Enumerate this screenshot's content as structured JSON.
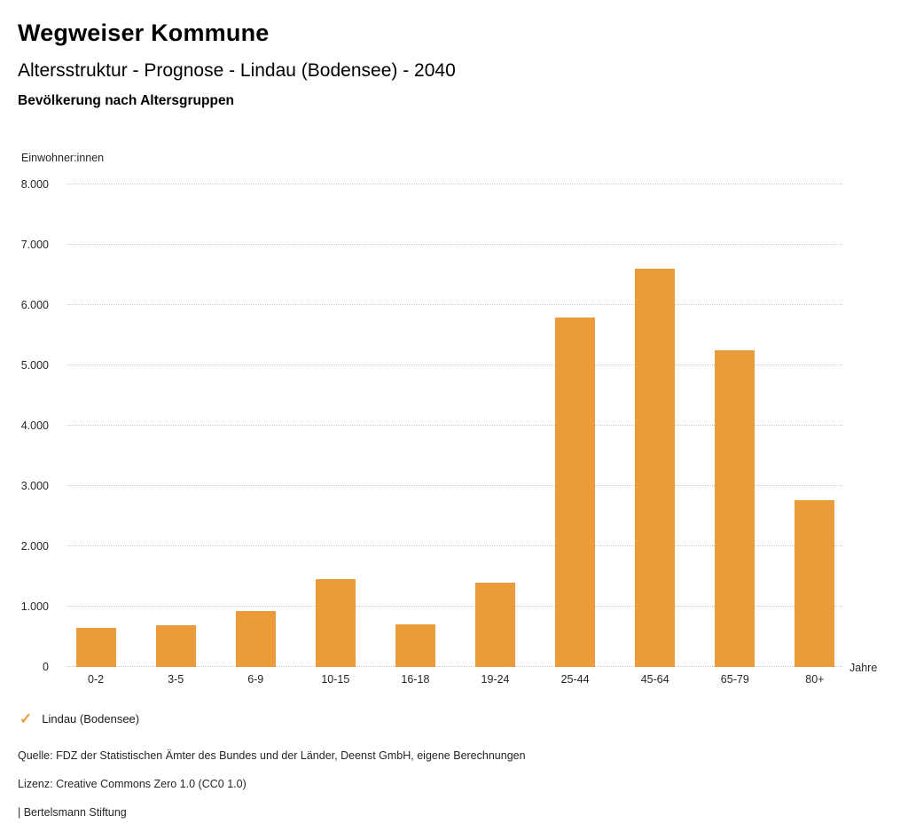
{
  "header": {
    "brand": "Wegweiser Kommune",
    "title": "Altersstruktur - Prognose - Lindau (Bodensee) - 2040",
    "subtitle": "Bevölkerung nach Altersgruppen"
  },
  "chart_data": {
    "type": "bar",
    "title": "Bevölkerung nach Altersgruppen",
    "categories": [
      "0-2",
      "3-5",
      "6-9",
      "10-15",
      "16-18",
      "19-24",
      "25-44",
      "45-64",
      "65-79",
      "80+"
    ],
    "series": [
      {
        "name": "Lindau (Bodensee)",
        "values": [
          650,
          690,
          920,
          1450,
          710,
          1390,
          5800,
          6610,
          5250,
          2770
        ]
      }
    ],
    "xlabel": "Jahre",
    "ylabel": "Einwohner:innen",
    "ylim": [
      0,
      8000
    ],
    "yticks": [
      0,
      1000,
      2000,
      3000,
      4000,
      5000,
      6000,
      7000,
      8000
    ],
    "ytick_labels": [
      "0",
      "1.000",
      "2.000",
      "3.000",
      "4.000",
      "5.000",
      "6.000",
      "7.000",
      "8.000"
    ],
    "grid": "horizontal-dotted",
    "legend_position": "bottom-left",
    "bar_color": "#EC9B3B"
  },
  "legend": {
    "check_icon": "✓",
    "label": "Lindau (Bodensee)"
  },
  "footer": {
    "source": "Quelle: FDZ der Statistischen Ämter des Bundes und der Länder, Deenst GmbH, eigene Berechnungen",
    "license": "Lizenz: Creative Commons Zero 1.0 (CC0 1.0)",
    "attribution": "| Bertelsmann Stiftung"
  }
}
